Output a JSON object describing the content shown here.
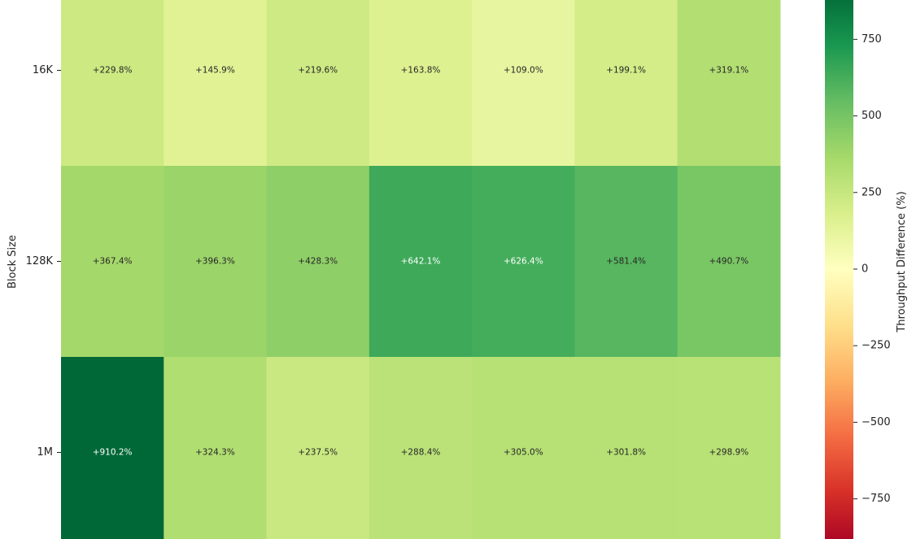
{
  "chart_data": {
    "type": "heatmap",
    "title": "",
    "ylabel": "Block Size",
    "xlabel": "",
    "rows": [
      "16K",
      "128K",
      "1M"
    ],
    "values": [
      [
        229.8,
        145.9,
        219.6,
        163.8,
        109.0,
        199.1,
        319.1
      ],
      [
        367.4,
        396.3,
        428.3,
        642.1,
        626.4,
        581.4,
        490.7
      ],
      [
        910.2,
        324.3,
        237.5,
        288.4,
        305.0,
        301.8,
        298.9
      ]
    ],
    "cell_labels": [
      [
        "+229.8%",
        "+145.9%",
        "+219.6%",
        "+163.8%",
        "+109.0%",
        "+199.1%",
        "+319.1%"
      ],
      [
        "+367.4%",
        "+396.3%",
        "+428.3%",
        "+642.1%",
        "+626.4%",
        "+581.4%",
        "+490.7%"
      ],
      [
        "+910.2%",
        "+324.3%",
        "+237.5%",
        "+288.4%",
        "+305.0%",
        "+301.8%",
        "+298.9%"
      ]
    ],
    "colorbar": {
      "label": "Throughput Difference (%)",
      "colormap": "RdYlGn",
      "vmin": -910.2,
      "vmax": 910.2,
      "ticks": [
        750,
        500,
        250,
        0,
        -250,
        -500,
        -750
      ],
      "tick_labels": [
        "750",
        "500",
        "250",
        "0",
        "−250",
        "−500",
        "−750"
      ]
    }
  }
}
